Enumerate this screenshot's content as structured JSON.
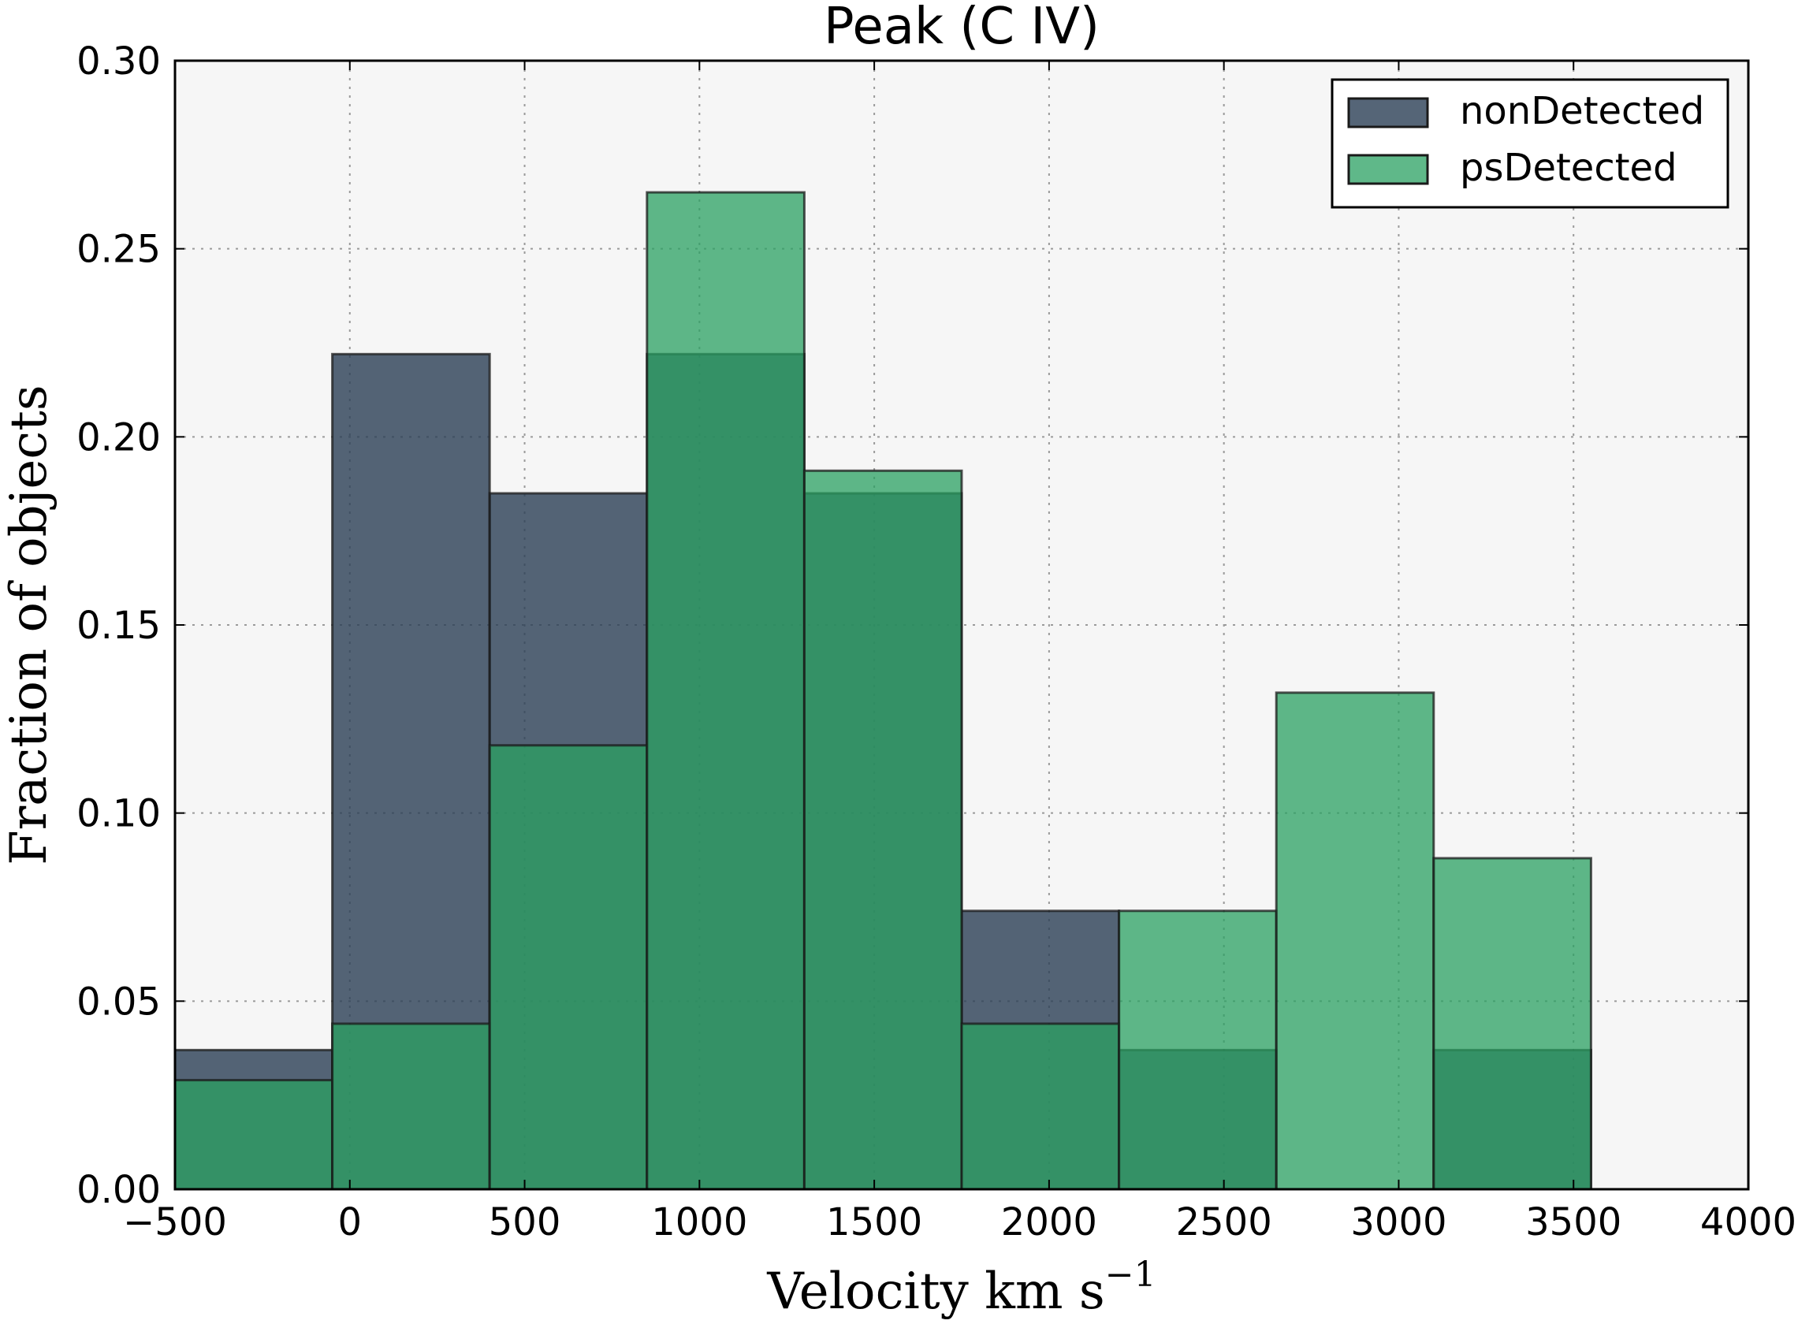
{
  "chart_data": {
    "type": "bar",
    "title": "Peak (C IV)",
    "xlabel": "Velocity km s",
    "xlabel_sup": "−1",
    "ylabel": "Fraction of objects",
    "xlim": [
      -500,
      4000
    ],
    "ylim": [
      0,
      0.3
    ],
    "x_ticks": [
      -500,
      0,
      500,
      1000,
      1500,
      2000,
      2500,
      3000,
      3500,
      4000
    ],
    "x_tick_labels": [
      "−500",
      "0",
      "500",
      "1000",
      "1500",
      "2000",
      "2500",
      "3000",
      "3500",
      "4000"
    ],
    "y_ticks": [
      0,
      0.05,
      0.1,
      0.15,
      0.2,
      0.25,
      0.3
    ],
    "y_tick_labels": [
      "0.00",
      "0.05",
      "0.10",
      "0.15",
      "0.20",
      "0.25",
      "0.30"
    ],
    "grid": true,
    "legend_position": "top-right",
    "bin_edges": [
      -500,
      -50,
      400,
      850,
      1300,
      1750,
      2200,
      2650,
      3100,
      3550
    ],
    "series": [
      {
        "name": "nonDetected",
        "color": "#2b3e55",
        "values": [
          0.037,
          0.222,
          0.185,
          0.222,
          0.185,
          0.074,
          0.037,
          0.0,
          0.037
        ]
      },
      {
        "name": "psDetected",
        "color": "#2aa062",
        "values": [
          0.029,
          0.044,
          0.118,
          0.265,
          0.191,
          0.044,
          0.074,
          0.132,
          0.088
        ]
      }
    ]
  }
}
